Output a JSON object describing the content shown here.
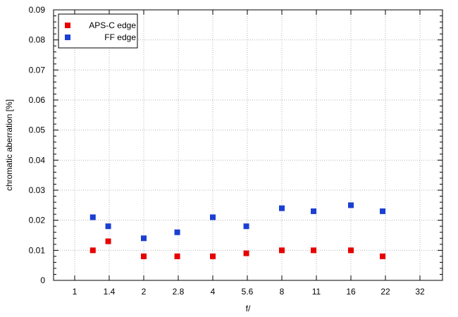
{
  "chart_data": {
    "type": "scatter",
    "title": "",
    "xlabel": "f/",
    "ylabel": "chromatic  aberration [%]",
    "x_scale": "log2",
    "x_ticks": [
      "1",
      "1.4",
      "2",
      "2.8",
      "4",
      "5.6",
      "8",
      "11",
      "16",
      "22",
      "32"
    ],
    "ylim": [
      0,
      0.09
    ],
    "y_ticks": [
      "0",
      "0.01",
      "0.02",
      "0.03",
      "0.04",
      "0.05",
      "0.06",
      "0.07",
      "0.08",
      "0.09"
    ],
    "grid": true,
    "legend_position": "top-left",
    "series": [
      {
        "name": "APS-C edge",
        "color": "#e60000",
        "marker": "square",
        "points": [
          {
            "x": 1.2,
            "y": 0.01
          },
          {
            "x": 1.4,
            "y": 0.013
          },
          {
            "x": 2,
            "y": 0.008
          },
          {
            "x": 2.8,
            "y": 0.008
          },
          {
            "x": 4,
            "y": 0.008
          },
          {
            "x": 5.6,
            "y": 0.009
          },
          {
            "x": 8,
            "y": 0.01
          },
          {
            "x": 11,
            "y": 0.01
          },
          {
            "x": 16,
            "y": 0.01
          },
          {
            "x": 22,
            "y": 0.008
          }
        ]
      },
      {
        "name": "FF edge",
        "color": "#1a3fd1",
        "marker": "square",
        "points": [
          {
            "x": 1.2,
            "y": 0.021
          },
          {
            "x": 1.4,
            "y": 0.018
          },
          {
            "x": 2,
            "y": 0.014
          },
          {
            "x": 2.8,
            "y": 0.016
          },
          {
            "x": 4,
            "y": 0.021
          },
          {
            "x": 5.6,
            "y": 0.018
          },
          {
            "x": 8,
            "y": 0.024
          },
          {
            "x": 11,
            "y": 0.023
          },
          {
            "x": 16,
            "y": 0.025
          },
          {
            "x": 22,
            "y": 0.023
          }
        ]
      }
    ]
  }
}
